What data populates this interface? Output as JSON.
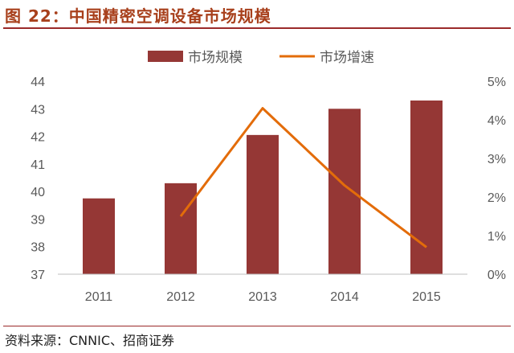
{
  "title": "图 22：中国精密空调设备市场规模",
  "source": "资料来源：CNNIC、招商证券",
  "colors": {
    "bar": "#953735",
    "line": "#e36c0a",
    "title": "#a8401c"
  },
  "chart_data": {
    "type": "bar+line",
    "title": "图 22：中国精密空调设备市场规模",
    "categories": [
      "2011",
      "2012",
      "2013",
      "2014",
      "2015"
    ],
    "series": [
      {
        "name": "市场规模",
        "type": "bar",
        "axis": "left",
        "values": [
          39.75,
          40.3,
          42.05,
          43.0,
          43.3
        ]
      },
      {
        "name": "市场增速",
        "type": "line",
        "axis": "right",
        "values": [
          null,
          0.015,
          0.043,
          0.023,
          0.007
        ]
      }
    ],
    "left_axis": {
      "ylim": [
        37,
        44
      ],
      "ticks": [
        "37",
        "38",
        "39",
        "40",
        "41",
        "42",
        "43",
        "44"
      ]
    },
    "right_axis": {
      "ylim": [
        0,
        0.05
      ],
      "ticks": [
        "0%",
        "1%",
        "2%",
        "3%",
        "4%",
        "5%"
      ]
    },
    "legend": {
      "placement": "top-center",
      "entries": [
        "市场规模",
        "市场增速"
      ]
    },
    "grid": false
  }
}
